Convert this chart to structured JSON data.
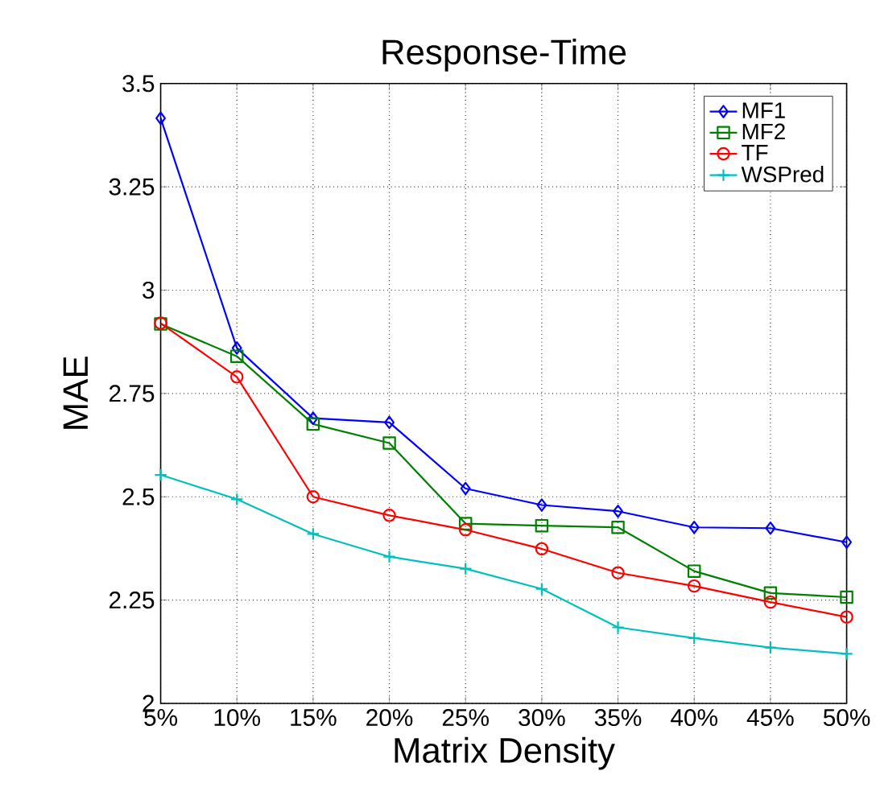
{
  "chart_data": {
    "type": "line",
    "title": "Response-Time",
    "xlabel": "Matrix Density",
    "ylabel": "MAE",
    "categories": [
      "5%",
      "10%",
      "15%",
      "20%",
      "25%",
      "30%",
      "35%",
      "40%",
      "45%",
      "50%"
    ],
    "ylim": [
      2,
      3.5
    ],
    "yticks": [
      2,
      2.25,
      2.5,
      2.75,
      3,
      3.25,
      3.5
    ],
    "grid": true,
    "legend": "top right",
    "line_style": "solid",
    "series": [
      {
        "name": "MF1",
        "color": "#0000ff",
        "marker": "diamond",
        "values": [
          3.416,
          2.86,
          2.69,
          2.68,
          2.52,
          2.48,
          2.465,
          2.426,
          2.424,
          2.39
        ]
      },
      {
        "name": "MF2",
        "color": "#008000",
        "marker": "square",
        "values": [
          2.918,
          2.84,
          2.676,
          2.63,
          2.435,
          2.43,
          2.426,
          2.32,
          2.267,
          2.257
        ]
      },
      {
        "name": "TF",
        "color": "#ff0000",
        "marker": "circle",
        "values": [
          2.92,
          2.79,
          2.5,
          2.455,
          2.42,
          2.374,
          2.316,
          2.284,
          2.245,
          2.209
        ]
      },
      {
        "name": "WSPred",
        "color": "#00bfbf",
        "marker": "cross",
        "values": [
          2.553,
          2.494,
          2.41,
          2.355,
          2.326,
          2.277,
          2.184,
          2.158,
          2.135,
          2.12
        ]
      }
    ]
  }
}
